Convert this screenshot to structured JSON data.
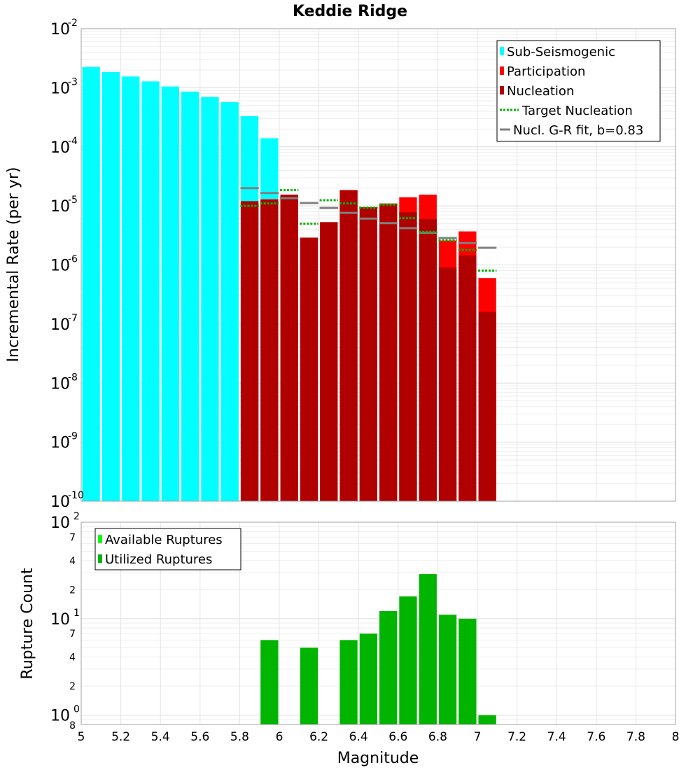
{
  "chart_data": [
    {
      "type": "bar",
      "title": "Keddie Ridge",
      "xlabel": "",
      "ylabel": "Incremental Rate (per yr)",
      "xlim": [
        5,
        8
      ],
      "ylim": [
        1e-10,
        0.01
      ],
      "yscale": "log",
      "bin_width": 0.1,
      "legend_position": "top-right",
      "legend": {
        "sub": "Sub-Seismogenic",
        "part": "Participation",
        "nucl": "Nucleation",
        "target": "Target Nucleation",
        "gr": "Nucl. G-R fit, b=0.83"
      },
      "colors": {
        "sub": "#00ffff",
        "part": "#ff0000",
        "nucl": "#b00000",
        "target": "#00b400",
        "gr": "#808080"
      },
      "series": [
        {
          "name": "Sub-Seismogenic",
          "x": [
            5.05,
            5.15,
            5.25,
            5.35,
            5.45,
            5.55,
            5.65,
            5.75,
            5.85,
            5.95
          ],
          "values": [
            0.00225,
            0.00185,
            0.00155,
            0.00128,
            0.00105,
            0.00086,
            0.0007,
            0.00057,
            0.00033,
            0.00014
          ]
        },
        {
          "name": "Participation",
          "x": [
            5.85,
            5.95,
            6.05,
            6.15,
            6.25,
            6.35,
            6.45,
            6.55,
            6.65,
            6.75,
            6.85,
            6.95,
            7.05
          ],
          "values": [
            1.2e-05,
            1.3e-05,
            1.55e-05,
            2.9e-06,
            5.3e-06,
            1.85e-05,
            9.5e-06,
            1.1e-05,
            1.4e-05,
            1.55e-05,
            2.6e-06,
            3.7e-06,
            6e-07
          ]
        },
        {
          "name": "Nucleation",
          "x": [
            5.85,
            5.95,
            6.05,
            6.15,
            6.25,
            6.35,
            6.45,
            6.55,
            6.65,
            6.75,
            6.85,
            6.95,
            7.05
          ],
          "values": [
            1.2e-05,
            1.25e-05,
            1.55e-05,
            2.9e-06,
            5.3e-06,
            1.85e-05,
            9.5e-06,
            1.05e-05,
            7.8e-06,
            6e-06,
            9e-07,
            1.45e-06,
            1.6e-07
          ]
        },
        {
          "name": "Target Nucleation",
          "x": [
            5.85,
            5.95,
            6.05,
            6.15,
            6.25,
            6.35,
            6.45,
            6.55,
            6.65,
            6.75,
            6.85,
            6.95,
            7.05
          ],
          "values": [
            1e-05,
            1.1e-05,
            1.85e-05,
            5e-06,
            1.25e-05,
            1.1e-05,
            9.3e-06,
            1.05e-05,
            6.2e-06,
            3.6e-06,
            2.6e-06,
            1.8e-06,
            8e-07
          ]
        },
        {
          "name": "Nucl. G-R fit, b=0.83",
          "x": [
            5.85,
            5.95,
            6.05,
            6.15,
            6.25,
            6.35,
            6.45,
            6.55,
            6.65,
            6.75,
            6.85,
            6.95,
            7.05
          ],
          "values": [
            2e-05,
            1.65e-05,
            1.35e-05,
            1.12e-05,
            9.2e-06,
            7.6e-06,
            6.1e-06,
            5.1e-06,
            4.2e-06,
            3.5e-06,
            2.85e-06,
            2.35e-06,
            1.95e-06
          ]
        }
      ]
    },
    {
      "type": "bar",
      "title": "",
      "xlabel": "Magnitude",
      "ylabel": "Rupture Count",
      "xlim": [
        5,
        8
      ],
      "ylim": [
        0.8,
        100
      ],
      "yscale": "log",
      "bin_width": 0.1,
      "x_ticks": [
        "5",
        "5.2",
        "5.4",
        "5.6",
        "5.8",
        "6",
        "6.2",
        "6.4",
        "6.6",
        "6.8",
        "7",
        "7.2",
        "7.4",
        "7.6",
        "7.8",
        "8"
      ],
      "legend_position": "top-left",
      "legend": {
        "avail": "Available Ruptures",
        "util": "Utilized Ruptures"
      },
      "colors": {
        "avail": "#00ff00",
        "util": "#00b400"
      },
      "series": [
        {
          "name": "Utilized Ruptures",
          "x": [
            5.95,
            6.15,
            6.35,
            6.45,
            6.55,
            6.65,
            6.75,
            6.85,
            6.95,
            7.05
          ],
          "values": [
            6,
            5,
            6,
            7,
            12,
            17,
            29,
            11,
            10,
            1
          ]
        }
      ]
    }
  ]
}
